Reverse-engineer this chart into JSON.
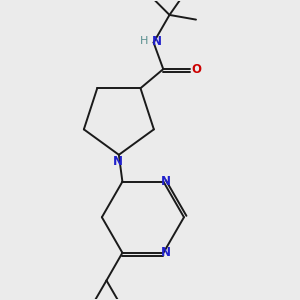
{
  "background_color": "#ebebeb",
  "bond_color": "#1a1a1a",
  "atom_colors": {
    "N": "#2020cc",
    "O": "#cc0000",
    "H": "#5a9090",
    "C": "#1a1a1a"
  },
  "figsize": [
    3.0,
    3.0
  ],
  "dpi": 100
}
